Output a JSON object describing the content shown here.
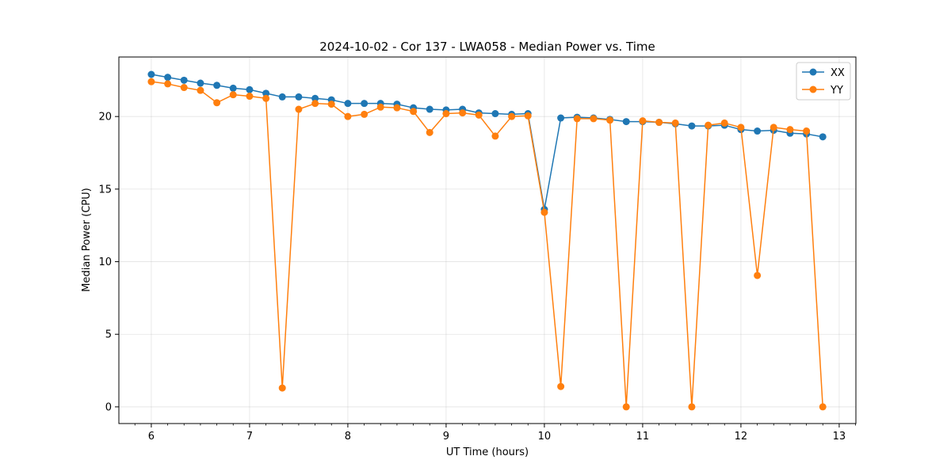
{
  "chart_data": {
    "type": "line",
    "title": "2024-10-02 - Cor 137 - LWA058 - Median Power vs. Time",
    "xlabel": "UT Time (hours)",
    "ylabel": "Median Power (CPU)",
    "xlim": [
      5.67,
      13.17
    ],
    "ylim": [
      -1.15,
      24.1
    ],
    "xticks": [
      6,
      7,
      8,
      9,
      10,
      11,
      12,
      13
    ],
    "yticks": [
      0,
      5,
      10,
      15,
      20
    ],
    "grid": true,
    "legend_position": "top-right",
    "x": [
      6.0,
      6.167,
      6.333,
      6.5,
      6.667,
      6.833,
      7.0,
      7.167,
      7.333,
      7.5,
      7.667,
      7.833,
      8.0,
      8.167,
      8.333,
      8.5,
      8.667,
      8.833,
      9.0,
      9.167,
      9.333,
      9.5,
      9.667,
      9.833,
      10.0,
      10.167,
      10.333,
      10.5,
      10.667,
      10.833,
      11.0,
      11.167,
      11.333,
      11.5,
      11.667,
      11.833,
      12.0,
      12.167,
      12.333,
      12.5,
      12.667,
      12.833
    ],
    "series": [
      {
        "name": "XX",
        "color": "#1f77b4",
        "values": [
          22.9,
          22.7,
          22.5,
          22.3,
          22.15,
          21.95,
          21.85,
          21.6,
          21.35,
          21.35,
          21.25,
          21.15,
          20.9,
          20.9,
          20.9,
          20.85,
          20.6,
          20.5,
          20.45,
          20.5,
          20.25,
          20.2,
          20.15,
          20.2,
          13.6,
          19.9,
          19.95,
          19.9,
          19.8,
          19.65,
          19.65,
          19.6,
          19.5,
          19.35,
          19.35,
          19.4,
          19.1,
          19.0,
          19.05,
          18.85,
          18.8,
          18.6
        ]
      },
      {
        "name": "YY",
        "color": "#ff7f0e",
        "values": [
          22.4,
          22.25,
          22.0,
          21.8,
          20.95,
          21.5,
          21.4,
          21.25,
          1.3,
          20.5,
          20.9,
          20.85,
          20.0,
          20.15,
          20.65,
          20.6,
          20.35,
          18.9,
          20.2,
          20.25,
          20.1,
          18.65,
          20.0,
          20.05,
          13.4,
          1.4,
          19.85,
          19.85,
          19.75,
          0.0,
          19.7,
          19.6,
          19.55,
          0.0,
          19.4,
          19.55,
          19.25,
          9.05,
          19.25,
          19.1,
          19.0,
          0.0
        ]
      }
    ]
  }
}
